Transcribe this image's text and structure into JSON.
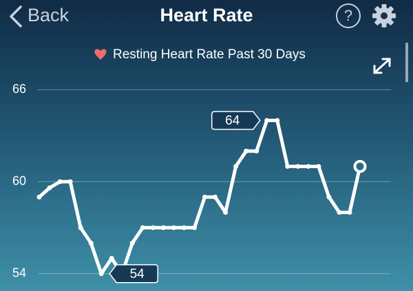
{
  "header": {
    "back": "Back",
    "title": "Heart Rate",
    "help": "?"
  },
  "chart_data": {
    "type": "line",
    "title": "Resting Heart Rate Past 30 Days",
    "categories": [
      null,
      null,
      null,
      null,
      null,
      null,
      null,
      null,
      null,
      null,
      null,
      null,
      null,
      null,
      null,
      null,
      null,
      null,
      null,
      null,
      null,
      null,
      null,
      null,
      null,
      null,
      null,
      null,
      null,
      null,
      null,
      null
    ],
    "values": [
      59,
      59.6,
      60,
      60,
      57,
      56,
      54,
      55,
      54,
      56,
      57,
      57,
      57,
      57,
      57,
      57,
      59,
      59,
      58,
      61,
      62,
      62,
      64,
      64,
      61,
      61,
      61,
      61,
      59,
      58,
      58,
      61
    ],
    "value_labels": [
      null,
      null,
      null,
      null,
      null,
      null,
      "54",
      null,
      null,
      null,
      null,
      null,
      null,
      null,
      null,
      null,
      null,
      null,
      null,
      null,
      null,
      null,
      "64",
      null,
      null,
      null,
      null,
      null,
      null,
      null,
      null,
      null
    ],
    "color": "#ffffff",
    "ylim": [
      53.9,
      67.2
    ],
    "yticks": [
      54,
      60,
      66
    ],
    "grid": true
  }
}
